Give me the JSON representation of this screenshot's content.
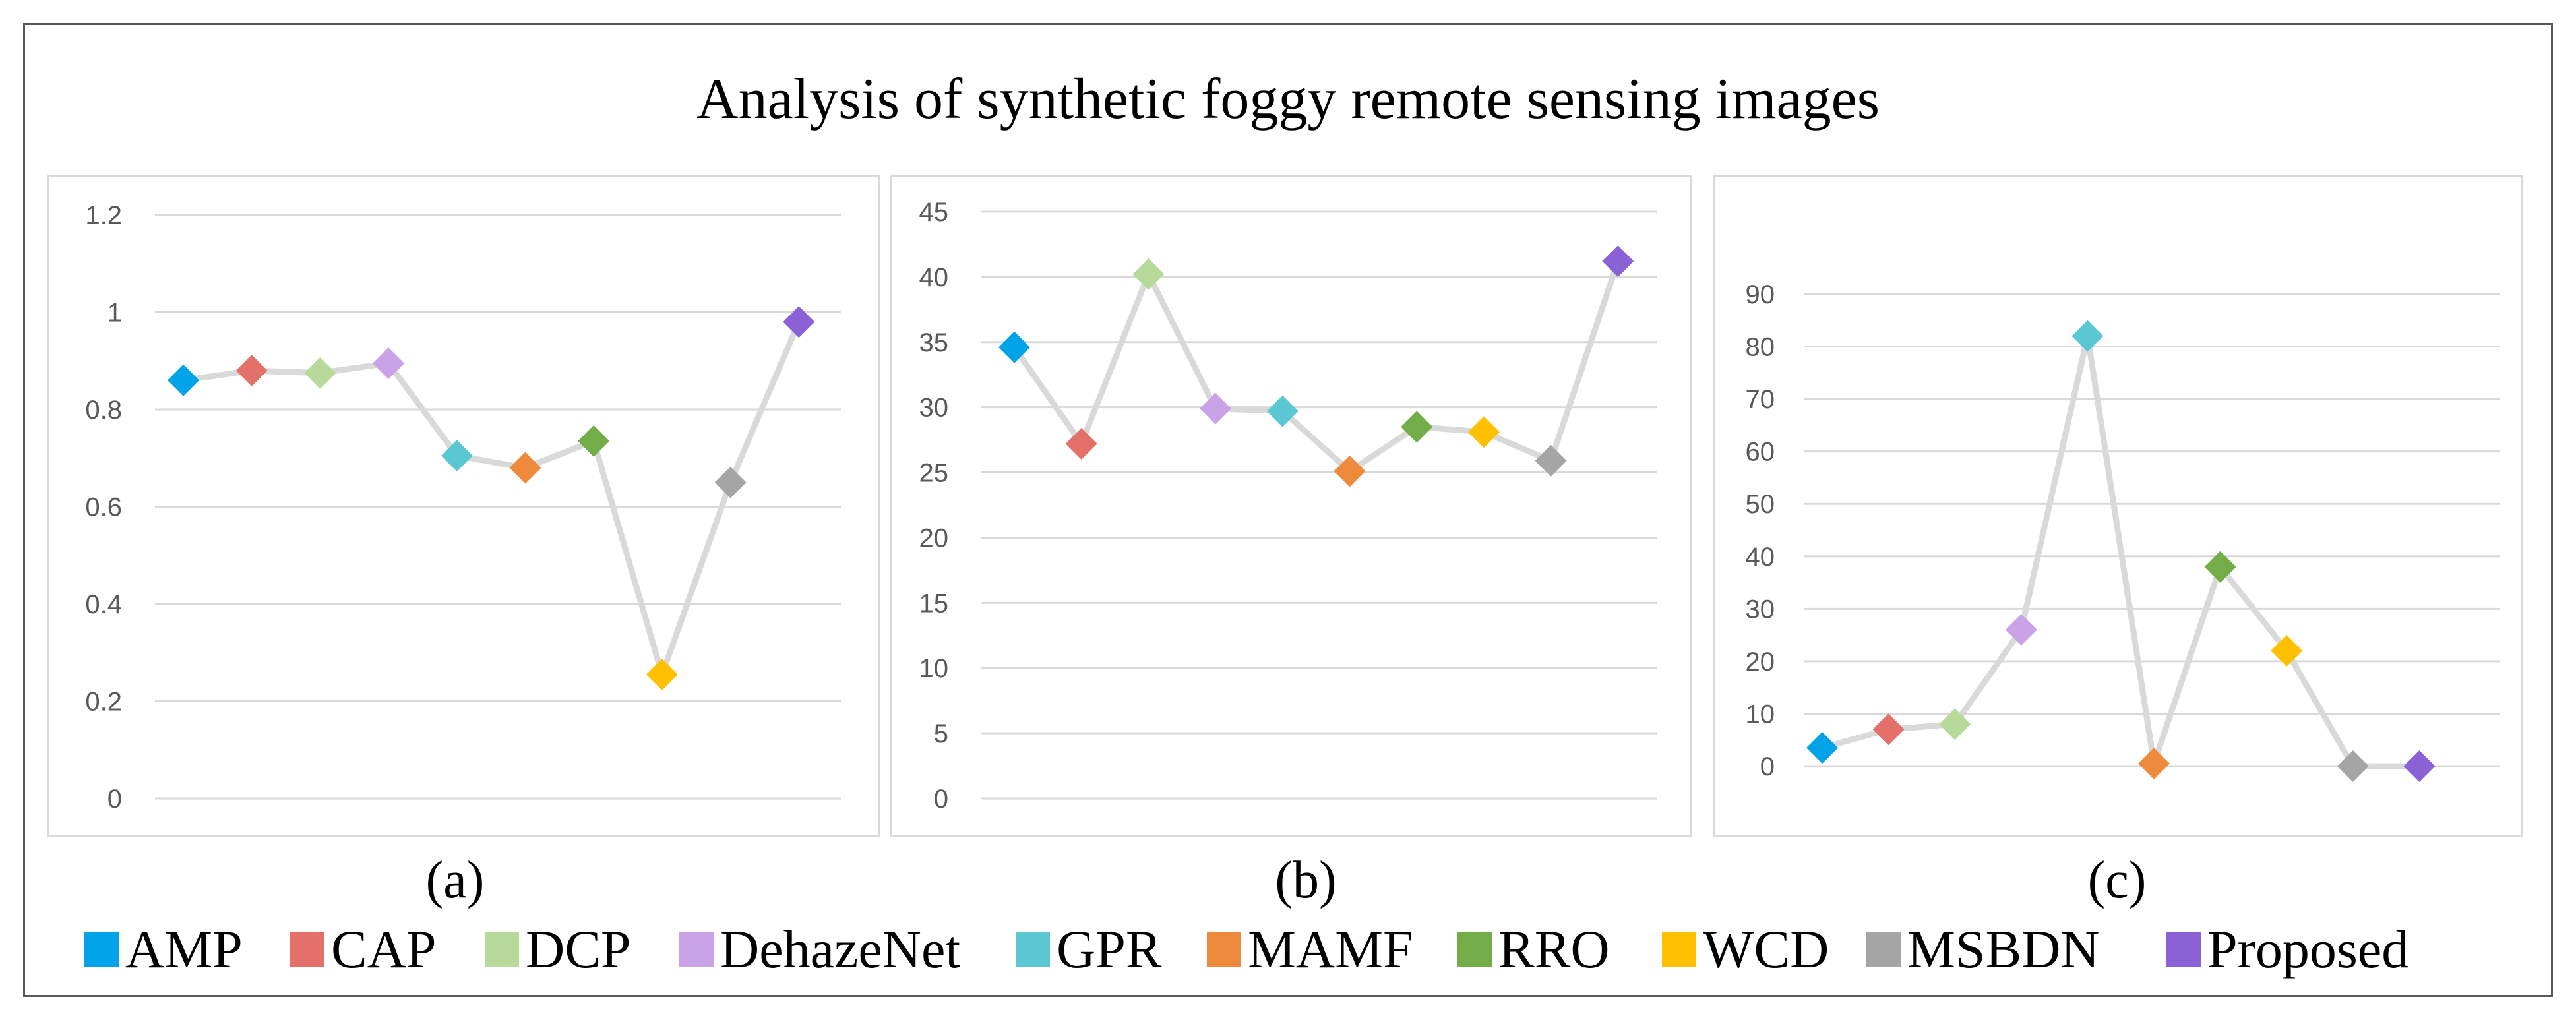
{
  "title": "Analysis of synthetic foggy remote sensing images",
  "colors": {
    "AMP": "#00a2e8",
    "CAP": "#e4706a",
    "DCP": "#b7d99a",
    "DehazeNet": "#c9a2e8",
    "GPR": "#5bc7d3",
    "MAMF": "#ee8a3b",
    "RRO": "#72ad47",
    "WCD": "#ffc000",
    "MSBDN": "#a5a5a5",
    "Proposed": "#8b62d6",
    "line": "#d9d9d9",
    "grid": "#d9d9d9",
    "axis_text": "#595959"
  },
  "legend": [
    "AMP",
    "CAP",
    "DCP",
    "DehazeNet",
    "GPR",
    "MAMF",
    "RRO",
    "WCD",
    "MSBDN",
    "Proposed"
  ],
  "chart_data": [
    {
      "type": "line",
      "label": "(a)",
      "categories": [
        "AMP",
        "CAP",
        "DCP",
        "DehazeNet",
        "GPR",
        "MAMF",
        "RRO",
        "WCD",
        "MSBDN",
        "Proposed"
      ],
      "values": [
        0.86,
        0.88,
        0.875,
        0.895,
        0.705,
        0.68,
        0.735,
        0.255,
        0.65,
        0.98
      ],
      "ylim": [
        0,
        1.2
      ],
      "yticks": [
        0,
        0.2,
        0.4,
        0.6,
        0.8,
        1,
        1.2
      ],
      "ytick_labels": [
        "0",
        "0.2",
        "0.4",
        "0.6",
        "0.8",
        "1",
        "1.2"
      ],
      "grid": true
    },
    {
      "type": "line",
      "label": "(b)",
      "categories": [
        "AMP",
        "CAP",
        "DCP",
        "DehazeNet",
        "GPR",
        "MAMF",
        "RRO",
        "WCD",
        "MSBDN",
        "Proposed"
      ],
      "values": [
        34.6,
        27.2,
        40.2,
        29.9,
        29.7,
        25.1,
        28.5,
        28.1,
        25.9,
        41.2
      ],
      "ylim": [
        0,
        45
      ],
      "yticks": [
        0,
        5,
        10,
        15,
        20,
        25,
        30,
        35,
        40,
        45
      ],
      "ytick_labels": [
        "0",
        "5",
        "10",
        "15",
        "20",
        "25",
        "30",
        "35",
        "40",
        "45"
      ],
      "grid": true
    },
    {
      "type": "line",
      "label": "(c)",
      "categories": [
        "AMP",
        "CAP",
        "DCP",
        "DehazeNet",
        "GPR",
        "MAMF",
        "RRO",
        "WCD",
        "MSBDN",
        "Proposed"
      ],
      "values": [
        3.5,
        7,
        8,
        26,
        82,
        0.5,
        38,
        22,
        0,
        0
      ],
      "ylim": [
        0,
        90
      ],
      "yticks": [
        0,
        10,
        20,
        30,
        40,
        50,
        60,
        70,
        80,
        90
      ],
      "ytick_labels": [
        "0",
        "10",
        "20",
        "30",
        "40",
        "50",
        "60",
        "70",
        "80",
        "90"
      ],
      "grid": true
    }
  ]
}
